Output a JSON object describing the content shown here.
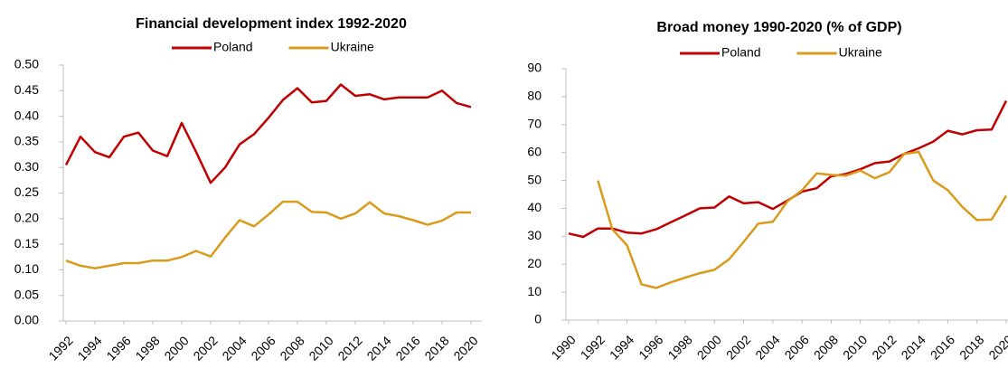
{
  "chart_data": [
    {
      "type": "line",
      "title": "Financial development index 1992-2020",
      "x": [
        1992,
        1993,
        1994,
        1995,
        1996,
        1997,
        1998,
        1999,
        2000,
        2001,
        2002,
        2003,
        2004,
        2005,
        2006,
        2007,
        2008,
        2009,
        2010,
        2011,
        2012,
        2013,
        2014,
        2015,
        2016,
        2017,
        2018,
        2019,
        2020
      ],
      "xlim": [
        1992,
        2020
      ],
      "xticks": [
        1992,
        1994,
        1996,
        1998,
        2000,
        2002,
        2004,
        2006,
        2008,
        2010,
        2012,
        2014,
        2016,
        2018,
        2020
      ],
      "ylim": [
        0,
        0.5
      ],
      "yticks": [
        {
          "value": 0,
          "label": "0.00"
        },
        {
          "value": 0.05,
          "label": "0.05"
        },
        {
          "value": 0.1,
          "label": "0.10"
        },
        {
          "value": 0.15,
          "label": "0.15"
        },
        {
          "value": 0.2,
          "label": "0.20"
        },
        {
          "value": 0.25,
          "label": "0.25"
        },
        {
          "value": 0.3,
          "label": "0.30"
        },
        {
          "value": 0.35,
          "label": "0.35"
        },
        {
          "value": 0.4,
          "label": "0.40"
        },
        {
          "value": 0.45,
          "label": "0.45"
        },
        {
          "value": 0.5,
          "label": "0.50"
        }
      ],
      "legend": "top",
      "grid": false,
      "series": [
        {
          "name": "Poland",
          "color": "#c00000",
          "values": [
            0.305,
            0.36,
            0.33,
            0.32,
            0.36,
            0.368,
            0.333,
            0.322,
            0.387,
            0.33,
            0.27,
            0.3,
            0.345,
            0.365,
            0.397,
            0.432,
            0.455,
            0.427,
            0.43,
            0.462,
            0.44,
            0.443,
            0.433,
            0.437,
            0.437,
            0.437,
            0.45,
            0.426,
            0.418
          ]
        },
        {
          "name": "Ukraine",
          "color": "#d99b1c",
          "values": [
            0.118,
            0.108,
            0.103,
            0.108,
            0.113,
            0.113,
            0.118,
            0.118,
            0.125,
            0.137,
            0.126,
            0.163,
            0.197,
            0.185,
            0.208,
            0.233,
            0.233,
            0.213,
            0.212,
            0.2,
            0.21,
            0.232,
            0.21,
            0.205,
            0.197,
            0.188,
            0.196,
            0.212,
            0.212
          ]
        }
      ]
    },
    {
      "type": "line",
      "title": "Broad money 1990-2020 (% of GDP)",
      "x": [
        1990,
        1991,
        1992,
        1993,
        1994,
        1995,
        1996,
        1997,
        1998,
        1999,
        2000,
        2001,
        2002,
        2003,
        2004,
        2005,
        2006,
        2007,
        2008,
        2009,
        2010,
        2011,
        2012,
        2013,
        2014,
        2015,
        2016,
        2017,
        2018,
        2019,
        2020
      ],
      "xlim": [
        1990,
        2020
      ],
      "xticks": [
        1990,
        1992,
        1994,
        1996,
        1998,
        2000,
        2002,
        2004,
        2006,
        2008,
        2010,
        2012,
        2014,
        2016,
        2018,
        2020
      ],
      "ylim": [
        0,
        90
      ],
      "yticks": [
        0,
        10,
        20,
        30,
        40,
        50,
        60,
        70,
        80,
        90
      ],
      "legend": "top",
      "grid": false,
      "series": [
        {
          "name": "Poland",
          "color": "#c00000",
          "values": [
            31,
            29.8,
            32.8,
            32.8,
            31.3,
            31,
            32.5,
            35,
            37.5,
            40,
            40.3,
            44.3,
            41.8,
            42.2,
            39.8,
            42.8,
            46,
            47.2,
            51.5,
            52.3,
            54,
            56.2,
            56.8,
            59.5,
            61.5,
            63.9,
            67.8,
            66.5,
            68,
            68.2,
            78.5
          ]
        },
        {
          "name": "Ukraine",
          "color": "#d99b1c",
          "values": [
            null,
            null,
            50,
            32.5,
            26.8,
            12.8,
            11.5,
            13.5,
            15.2,
            16.8,
            18,
            21.8,
            28,
            34.5,
            35.2,
            42.5,
            46.5,
            52.5,
            52,
            51.7,
            53.5,
            50.8,
            53,
            59.5,
            60.2,
            50,
            46.5,
            40.5,
            35.8,
            36,
            44.5
          ]
        }
      ]
    }
  ]
}
